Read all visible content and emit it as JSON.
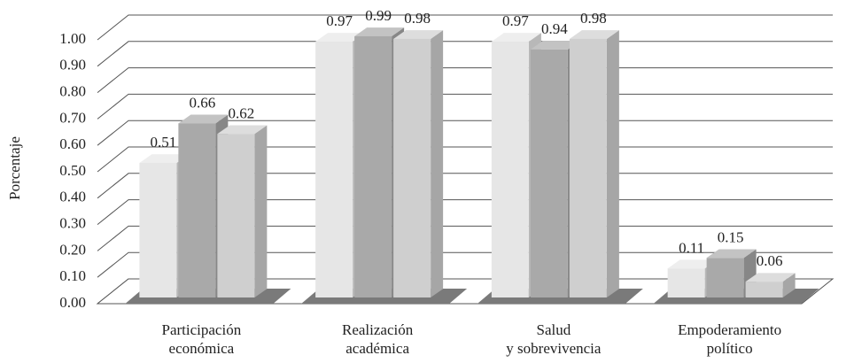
{
  "chart_data": {
    "type": "bar3d",
    "y_label": "Porcentaje",
    "categories": [
      "Participación\neconómica",
      "Realización\nacadémica",
      "Salud\ny sobrevivencia",
      "Empoderamiento\npolítico"
    ],
    "series": [
      {
        "color": "#e6e6e6",
        "values": [
          0.51,
          0.97,
          0.97,
          0.11
        ]
      },
      {
        "color": "#a9a9a9",
        "values": [
          0.66,
          0.99,
          0.94,
          0.15
        ]
      },
      {
        "color": "#cfcfcf",
        "values": [
          0.62,
          0.98,
          0.98,
          0.06
        ]
      }
    ],
    "ylim": [
      0,
      1
    ],
    "yticks": [
      {
        "value": 0,
        "label": "0.00"
      },
      {
        "value": 0.1,
        "label": "0.10"
      },
      {
        "value": 0.2,
        "label": "0.20"
      },
      {
        "value": 0.3,
        "label": "0.30"
      },
      {
        "value": 0.4,
        "label": "0.40"
      },
      {
        "value": 0.5,
        "label": "0.50"
      },
      {
        "value": 0.6,
        "label": "0.60"
      },
      {
        "value": 0.7,
        "label": "0.70"
      },
      {
        "value": 0.8,
        "label": "0.80"
      },
      {
        "value": 0.9,
        "label": "0.90"
      },
      {
        "value": 1,
        "label": "1.00"
      }
    ],
    "grid": true
  }
}
